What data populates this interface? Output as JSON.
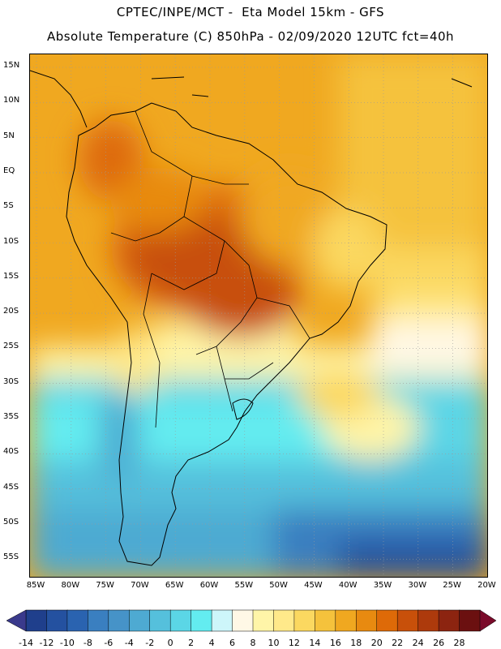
{
  "header": {
    "line1": "CPTEC/INPE/MCT -  Eta Model 15km - GFS",
    "line2": "Absolute Temperature (C) 850hPa - 02/09/2020 12UTC fct=40h"
  },
  "map": {
    "lat_labels": [
      "15N",
      "10N",
      "5N",
      "EQ",
      "5S",
      "10S",
      "15S",
      "20S",
      "25S",
      "30S",
      "35S",
      "40S",
      "45S",
      "50S",
      "55S"
    ],
    "lon_labels": [
      "85W",
      "80W",
      "75W",
      "70W",
      "65W",
      "60W",
      "55W",
      "50W",
      "45W",
      "40W",
      "35W",
      "30W",
      "25W",
      "20W"
    ],
    "gridlines": "dotted"
  },
  "colorbar": {
    "ticks": [
      "-14",
      "-12",
      "-10",
      "-8",
      "-6",
      "-4",
      "-2",
      "0",
      "2",
      "4",
      "6",
      "8",
      "10",
      "12",
      "14",
      "16",
      "18",
      "20",
      "22",
      "24",
      "26",
      "28"
    ],
    "colors": [
      "#1f3f8c",
      "#2451a0",
      "#2a63b0",
      "#3a7fc0",
      "#4693c8",
      "#4eaad2",
      "#55c0dc",
      "#5bd6e6",
      "#63ecf0",
      "#cdf6fa",
      "#fff8e6",
      "#fff5a8",
      "#ffe98a",
      "#fbd860",
      "#f5c23c",
      "#f0a820",
      "#e88a10",
      "#de6a08",
      "#c8500a",
      "#ad3a0c",
      "#8c2410",
      "#6b1010"
    ]
  }
}
